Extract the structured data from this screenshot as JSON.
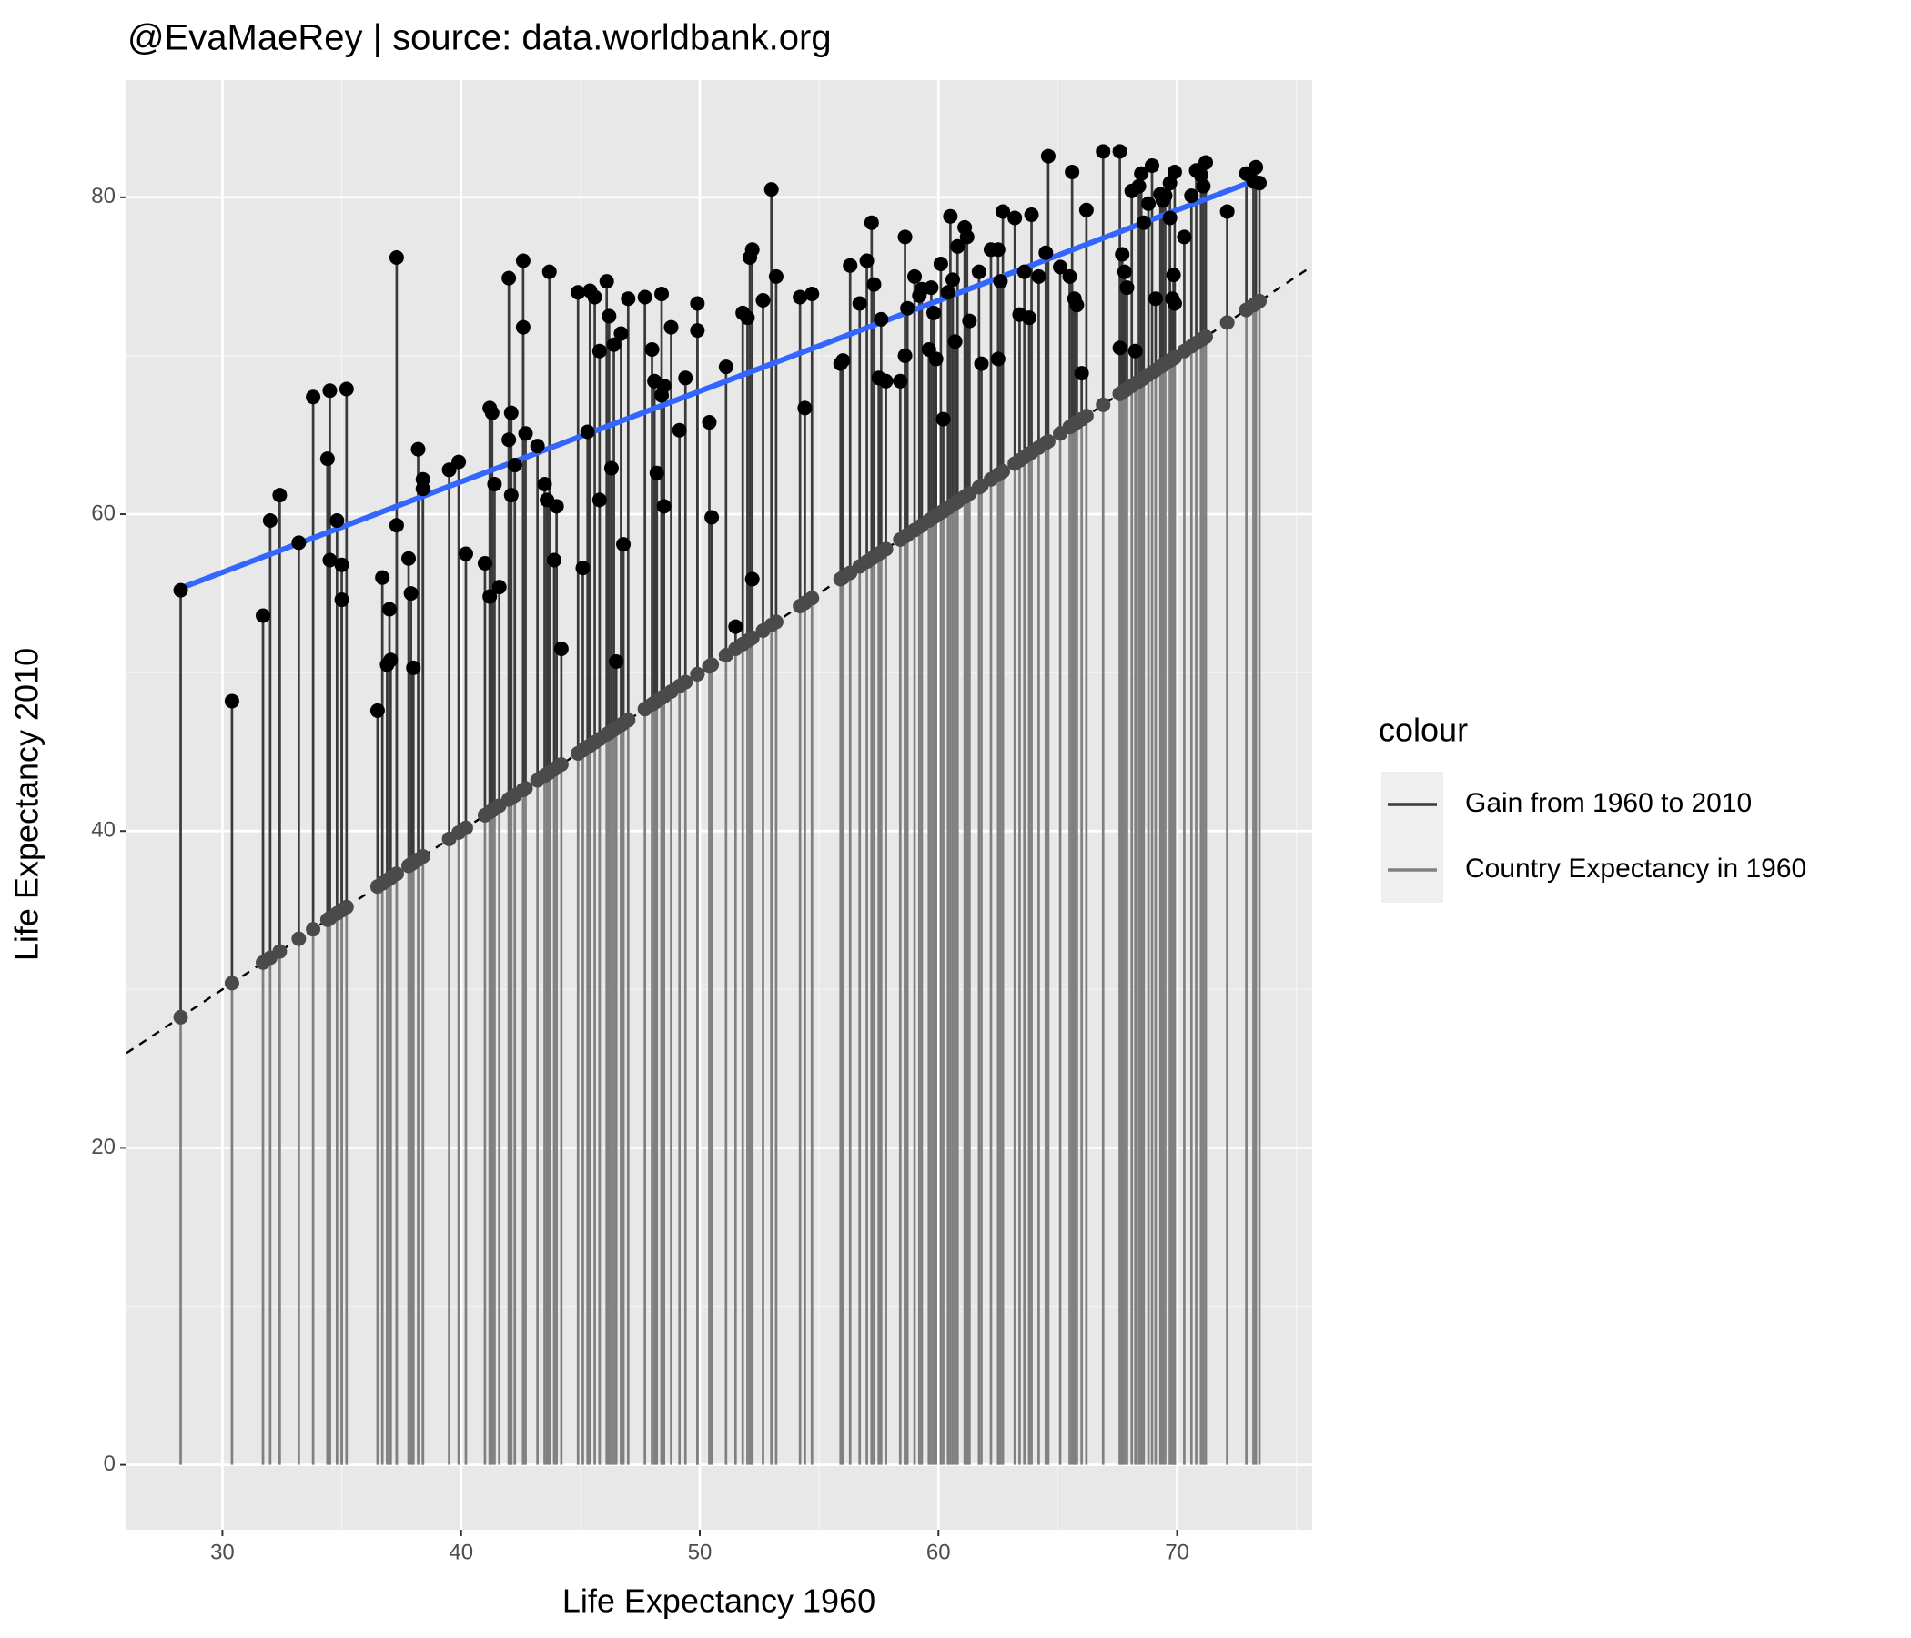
{
  "chart_data": {
    "type": "segment",
    "title": "@EvaMaeRey | source: data.worldbank.org",
    "xlabel": "Life Expectancy 1960",
    "ylabel": "Life Expectancy 2010",
    "legend_title": "colour",
    "xlim": [
      25.98,
      75.66
    ],
    "ylim": [
      -4.1,
      87.4
    ],
    "xticks": [
      30,
      40,
      50,
      60,
      70
    ],
    "yticks": [
      0,
      20,
      40,
      60,
      80
    ],
    "grid": true,
    "identity_line": true,
    "point_color": "#000000",
    "base_point_color": "#4a4a4a",
    "series": [
      {
        "name": "Gain from 1960 to 2010",
        "color": "#3a3a3a"
      },
      {
        "name": "Country Expectancy in 1960",
        "color": "#808080"
      }
    ],
    "trend": {
      "color": "#3366ff",
      "x": [
        28.2,
        73.5
      ],
      "values": [
        55.3,
        81.2
      ]
    },
    "x": [
      28.25,
      30.4,
      31.7,
      32.0,
      32.4,
      33.2,
      33.8,
      34.4,
      34.5,
      34.5,
      34.8,
      35.0,
      35.0,
      35.2,
      36.5,
      36.7,
      36.9,
      37.0,
      37.05,
      37.3,
      37.3,
      37.8,
      37.9,
      38.0,
      38.2,
      38.4,
      38.4,
      39.5,
      39.9,
      40.2,
      41.0,
      41.2,
      41.3,
      41.2,
      41.4,
      41.6,
      42.0,
      42.0,
      42.1,
      42.1,
      42.25,
      42.6,
      42.6,
      42.7,
      43.2,
      43.5,
      43.6,
      43.7,
      43.9,
      44.0,
      44.2,
      44.9,
      45.1,
      45.3,
      45.4,
      45.6,
      45.8,
      45.8,
      46.1,
      46.2,
      46.3,
      46.4,
      46.5,
      46.7,
      46.8,
      47.0,
      47.7,
      48.0,
      48.1,
      48.2,
      48.4,
      48.4,
      48.5,
      48.5,
      48.8,
      49.15,
      49.4,
      49.9,
      49.9,
      50.4,
      50.5,
      51.1,
      51.5,
      51.8,
      52.0,
      52.1,
      52.2,
      52.2,
      52.65,
      53.0,
      53.2,
      54.2,
      54.4,
      54.7,
      55.9,
      56.0,
      56.3,
      56.7,
      57.0,
      57.2,
      57.3,
      57.6,
      57.5,
      57.8,
      58.4,
      58.6,
      58.6,
      58.7,
      59.0,
      59.2,
      59.3,
      59.6,
      59.7,
      59.8,
      59.9,
      60.1,
      60.2,
      60.4,
      60.5,
      60.6,
      60.7,
      60.8,
      61.1,
      61.2,
      61.3,
      61.7,
      61.8,
      62.2,
      62.5,
      62.5,
      62.6,
      62.7,
      63.2,
      63.4,
      63.6,
      63.8,
      63.9,
      64.2,
      64.5,
      64.6,
      65.1,
      65.5,
      65.6,
      65.7,
      65.8,
      66.0,
      66.2,
      66.9,
      67.6,
      67.6,
      67.7,
      67.8,
      67.9,
      68.1,
      68.25,
      68.4,
      68.5,
      68.6,
      68.8,
      68.95,
      69.1,
      69.3,
      69.4,
      69.5,
      69.7,
      69.7,
      69.8,
      69.9,
      69.85,
      69.9,
      70.3,
      70.6,
      70.8,
      71.0,
      71.1,
      71.2,
      72.1,
      72.9,
      73.2,
      73.3,
      73.45
    ],
    "values": [
      55.2,
      48.2,
      53.6,
      59.6,
      61.2,
      58.2,
      67.4,
      63.5,
      67.8,
      57.1,
      59.6,
      56.8,
      54.6,
      67.9,
      47.6,
      56.0,
      50.5,
      54.0,
      50.8,
      76.2,
      59.3,
      57.2,
      55.0,
      50.3,
      64.1,
      62.2,
      61.6,
      62.8,
      63.3,
      57.5,
      56.9,
      66.7,
      66.4,
      54.8,
      61.9,
      55.4,
      74.9,
      64.7,
      66.4,
      61.2,
      63.1,
      76.0,
      71.8,
      65.1,
      64.3,
      61.9,
      60.9,
      75.3,
      57.1,
      60.5,
      51.5,
      74.0,
      56.6,
      65.2,
      74.1,
      73.7,
      70.3,
      60.9,
      74.7,
      72.5,
      62.9,
      70.7,
      50.7,
      71.4,
      58.1,
      73.6,
      73.7,
      70.4,
      68.4,
      62.6,
      73.9,
      67.5,
      68.1,
      60.5,
      71.8,
      65.3,
      68.6,
      73.3,
      71.6,
      65.8,
      59.8,
      69.3,
      52.9,
      72.7,
      72.4,
      76.2,
      76.7,
      55.9,
      73.5,
      80.5,
      75.0,
      73.7,
      66.7,
      73.9,
      69.5,
      69.7,
      75.7,
      73.3,
      76.0,
      78.4,
      74.5,
      72.3,
      68.6,
      68.4,
      68.4,
      77.5,
      70.0,
      73.0,
      75.0,
      73.8,
      74.2,
      70.4,
      74.3,
      72.7,
      69.8,
      75.8,
      66.0,
      74.0,
      78.8,
      74.8,
      70.9,
      76.9,
      78.1,
      77.5,
      72.2,
      75.3,
      69.5,
      76.7,
      76.7,
      69.8,
      74.7,
      79.1,
      78.7,
      72.6,
      75.3,
      72.4,
      78.9,
      75.0,
      76.5,
      82.6,
      75.6,
      75.0,
      81.6,
      73.6,
      73.2,
      68.9,
      79.2,
      82.9,
      82.9,
      70.5,
      76.4,
      75.3,
      74.3,
      80.4,
      70.3,
      80.7,
      81.5,
      78.4,
      79.6,
      82.0,
      73.6,
      80.2,
      79.8,
      80.1,
      78.7,
      80.9,
      73.6,
      73.3,
      75.1,
      81.6,
      77.5,
      80.1,
      81.7,
      81.4,
      80.7,
      82.2,
      79.1,
      81.5,
      81.0,
      81.9,
      80.9
    ]
  }
}
